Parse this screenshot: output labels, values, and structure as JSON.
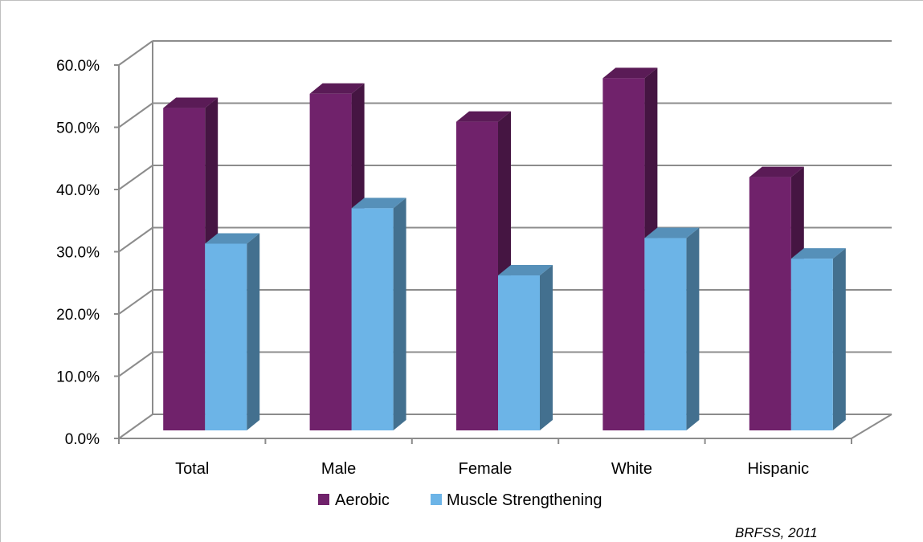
{
  "chart_data": {
    "type": "bar",
    "categories": [
      "Total",
      "Male",
      "Female",
      "White",
      "Hispanic"
    ],
    "series": [
      {
        "name": "Aerobic",
        "values": [
          51.8,
          54.1,
          49.6,
          56.6,
          40.7
        ],
        "color": "#70226b"
      },
      {
        "name": "Muscle Strengthening",
        "values": [
          30.0,
          35.7,
          24.9,
          30.9,
          27.6
        ],
        "color": "#6cb4e7"
      }
    ],
    "y_ticks": [
      "0.0%",
      "10.0%",
      "20.0%",
      "30.0%",
      "40.0%",
      "50.0%",
      "60.0%"
    ],
    "ylim": [
      0,
      60
    ],
    "grid": true,
    "three_d": true,
    "legend_position": "bottom",
    "title": "",
    "xlabel": "",
    "ylabel": ""
  },
  "source_note": "BRFSS, 2011"
}
